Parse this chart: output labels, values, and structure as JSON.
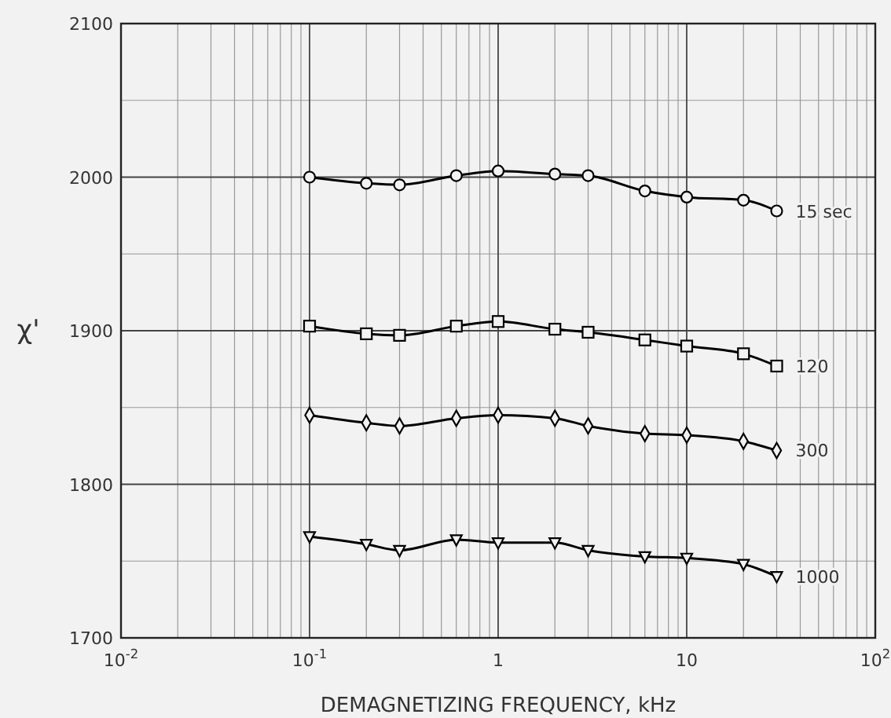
{
  "chart_data": {
    "type": "line",
    "xlabel": "DEMAGNETIZING FREQUENCY, kHz",
    "ylabel": "χ'",
    "log": "x",
    "xlim": [
      0.01,
      100
    ],
    "ylim": [
      1700,
      2100
    ],
    "xticks": [
      {
        "value": 0.01,
        "label": "10$^{-2}$"
      },
      {
        "value": 0.1,
        "label": "10$^{-1}$"
      },
      1,
      10,
      {
        "value": 100,
        "label": "10$^{2}$"
      }
    ],
    "yticks": [
      1700,
      1800,
      1900,
      2000,
      2100
    ],
    "grid": true,
    "legend": false,
    "line_style": "solid",
    "x": [
      0.1,
      0.2,
      0.3,
      0.6,
      1,
      2,
      3,
      6,
      10,
      20,
      30
    ],
    "series": [
      {
        "name": "15 sec",
        "color": "#000000",
        "marker": "circle",
        "values": [
          2000,
          1996,
          1995,
          2001,
          2004,
          2002,
          2001,
          1991,
          1987,
          1985,
          1978
        ]
      },
      {
        "name": "120",
        "color": "#000000",
        "marker": "square",
        "values": [
          1903,
          1898,
          1897,
          1903,
          1906,
          1901,
          1899,
          1894,
          1890,
          1885,
          1877
        ]
      },
      {
        "name": "300",
        "color": "#000000",
        "marker": "diamond",
        "values": [
          1845,
          1840,
          1838,
          1843,
          1845,
          1843,
          1838,
          1833,
          1832,
          1828,
          1822
        ]
      },
      {
        "name": "1000",
        "color": "#000000",
        "marker": "triangle",
        "values": [
          1766,
          1761,
          1757,
          1764,
          1762,
          1762,
          1757,
          1753,
          1752,
          1748,
          1740
        ]
      }
    ]
  }
}
